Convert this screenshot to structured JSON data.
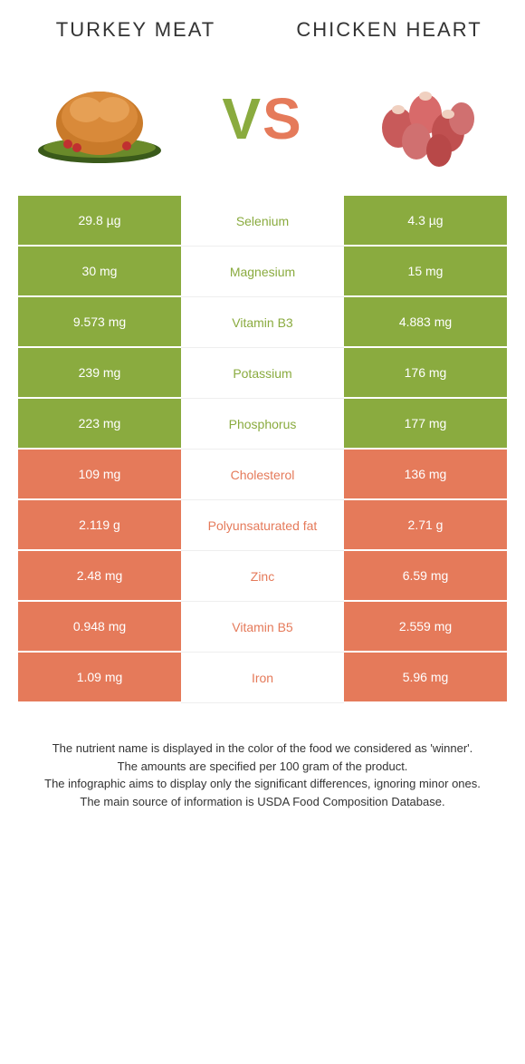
{
  "colors": {
    "left": "#8aab3f",
    "right": "#e57a5a",
    "text": "#333333",
    "bg": "#ffffff"
  },
  "header": {
    "left_title": "TURKEY MEAT",
    "right_title": "CHICKEN HEART",
    "vs_v": "V",
    "vs_s": "S"
  },
  "rows": [
    {
      "nutrient": "Selenium",
      "left": "29.8 µg",
      "right": "4.3 µg",
      "winner": "left"
    },
    {
      "nutrient": "Magnesium",
      "left": "30 mg",
      "right": "15 mg",
      "winner": "left"
    },
    {
      "nutrient": "Vitamin B3",
      "left": "9.573 mg",
      "right": "4.883 mg",
      "winner": "left"
    },
    {
      "nutrient": "Potassium",
      "left": "239 mg",
      "right": "176 mg",
      "winner": "left"
    },
    {
      "nutrient": "Phosphorus",
      "left": "223 mg",
      "right": "177 mg",
      "winner": "left"
    },
    {
      "nutrient": "Cholesterol",
      "left": "109 mg",
      "right": "136 mg",
      "winner": "right"
    },
    {
      "nutrient": "Polyunsaturated fat",
      "left": "2.119 g",
      "right": "2.71 g",
      "winner": "right"
    },
    {
      "nutrient": "Zinc",
      "left": "2.48 mg",
      "right": "6.59 mg",
      "winner": "right"
    },
    {
      "nutrient": "Vitamin B5",
      "left": "0.948 mg",
      "right": "2.559 mg",
      "winner": "right"
    },
    {
      "nutrient": "Iron",
      "left": "1.09 mg",
      "right": "5.96 mg",
      "winner": "right"
    }
  ],
  "footer": {
    "line1": "The nutrient name is displayed in the color of the food we considered as 'winner'.",
    "line2": "The amounts are specified per 100 gram of the product.",
    "line3": "The infographic aims to display only the significant differences, ignoring minor ones.",
    "line4": "The main source of information is USDA Food Composition Database."
  }
}
